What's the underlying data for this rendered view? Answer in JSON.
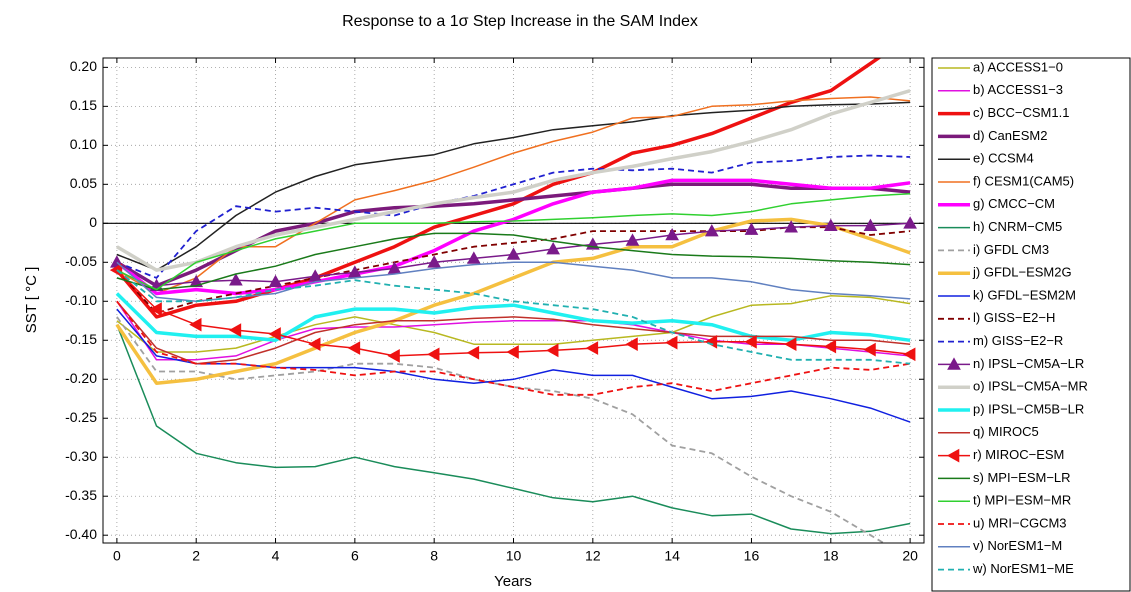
{
  "chart_data": {
    "type": "line",
    "title": "Response to a 1σ Step Increase in the SAM Index",
    "xlabel": "Years",
    "ylabel": "SST [ °C ]",
    "x": [
      0,
      1,
      2,
      3,
      4,
      5,
      6,
      7,
      8,
      9,
      10,
      11,
      12,
      13,
      14,
      15,
      16,
      17,
      18,
      19,
      20
    ],
    "xlim": [
      -0.35,
      20.35
    ],
    "ylim": [
      -0.41,
      0.212
    ],
    "xticks": [
      0,
      2,
      4,
      6,
      8,
      10,
      12,
      14,
      16,
      18,
      20
    ],
    "yticks": [
      {
        "value": 0.2,
        "label": "0.20"
      },
      {
        "value": 0.15,
        "label": "0.15"
      },
      {
        "value": 0.1,
        "label": "0.10"
      },
      {
        "value": 0.05,
        "label": "0.05"
      },
      0,
      {
        "value": -0.05,
        "label": "-0.05"
      },
      {
        "value": -0.1,
        "label": "-0.10"
      },
      {
        "value": -0.15,
        "label": "-0.15"
      },
      {
        "value": -0.2,
        "label": "-0.20"
      },
      {
        "value": -0.25,
        "label": "-0.25"
      },
      {
        "value": -0.3,
        "label": "-0.30"
      },
      {
        "value": -0.35,
        "label": "-0.35"
      },
      {
        "value": -0.4,
        "label": "-0.40"
      }
    ],
    "grid": true,
    "legend": "right",
    "series": [
      {
        "name": "a) ACCESS1−0",
        "color": "#b8b820",
        "width": 1.5,
        "dash": false,
        "values": [
          -0.125,
          -0.165,
          -0.165,
          -0.16,
          -0.145,
          -0.13,
          -0.12,
          -0.13,
          -0.14,
          -0.155,
          -0.155,
          -0.155,
          -0.15,
          -0.145,
          -0.14,
          -0.12,
          -0.105,
          -0.103,
          -0.093,
          -0.095,
          -0.103
        ]
      },
      {
        "name": "b) ACCESS1−3",
        "color": "#e010e0",
        "width": 1.5,
        "dash": false,
        "values": [
          -0.1,
          -0.175,
          -0.175,
          -0.17,
          -0.15,
          -0.135,
          -0.133,
          -0.133,
          -0.13,
          -0.127,
          -0.125,
          -0.125,
          -0.125,
          -0.13,
          -0.14,
          -0.15,
          -0.155,
          -0.155,
          -0.16,
          -0.165,
          -0.17
        ]
      },
      {
        "name": "c) BCC−CSM1.1",
        "color": "#ee1111",
        "width": 3.5,
        "dash": false,
        "values": [
          -0.06,
          -0.12,
          -0.105,
          -0.1,
          -0.085,
          -0.07,
          -0.05,
          -0.03,
          -0.005,
          0.01,
          0.025,
          0.05,
          0.065,
          0.09,
          0.1,
          0.115,
          0.135,
          0.155,
          0.17,
          0.205,
          0.24
        ]
      },
      {
        "name": "d) CanESM2",
        "color": "#7b1a7b",
        "width": 3.5,
        "dash": false,
        "values": [
          -0.05,
          -0.08,
          -0.06,
          -0.035,
          -0.01,
          0.0,
          0.015,
          0.02,
          0.022,
          0.025,
          0.03,
          0.035,
          0.04,
          0.045,
          0.05,
          0.05,
          0.05,
          0.045,
          0.045,
          0.045,
          0.04
        ]
      },
      {
        "name": "e) CCSM4",
        "color": "#222222",
        "width": 1.5,
        "dash": false,
        "values": [
          -0.04,
          -0.06,
          -0.03,
          0.01,
          0.04,
          0.06,
          0.075,
          0.082,
          0.088,
          0.102,
          0.11,
          0.12,
          0.125,
          0.13,
          0.138,
          0.142,
          0.145,
          0.15,
          0.152,
          0.153,
          0.155
        ]
      },
      {
        "name": "f) CESM1(CAM5)",
        "color": "#f07020",
        "width": 1.5,
        "dash": false,
        "values": [
          -0.06,
          -0.09,
          -0.07,
          -0.03,
          -0.03,
          0.0,
          0.03,
          0.042,
          0.055,
          0.072,
          0.09,
          0.105,
          0.117,
          0.135,
          0.137,
          0.15,
          0.152,
          0.157,
          0.16,
          0.162,
          0.157
        ]
      },
      {
        "name": "g) CMCC−CM",
        "color": "#ff00ff",
        "width": 3.5,
        "dash": false,
        "values": [
          -0.05,
          -0.09,
          -0.085,
          -0.09,
          -0.085,
          -0.075,
          -0.065,
          -0.055,
          -0.035,
          -0.01,
          0.005,
          0.025,
          0.04,
          0.045,
          0.055,
          0.055,
          0.055,
          0.05,
          0.045,
          0.045,
          0.052
        ]
      },
      {
        "name": "h) CNRM−CM5",
        "color": "#1a8c5a",
        "width": 1.5,
        "dash": false,
        "values": [
          -0.13,
          -0.26,
          -0.295,
          -0.307,
          -0.313,
          -0.312,
          -0.3,
          -0.312,
          -0.32,
          -0.328,
          -0.34,
          -0.352,
          -0.357,
          -0.35,
          -0.365,
          -0.375,
          -0.373,
          -0.392,
          -0.398,
          -0.395,
          -0.385
        ]
      },
      {
        "name": "i) GFDL CM3",
        "color": "#a0a0a0",
        "width": 1.8,
        "dash": true,
        "values": [
          -0.12,
          -0.19,
          -0.19,
          -0.2,
          -0.195,
          -0.19,
          -0.18,
          -0.18,
          -0.185,
          -0.2,
          -0.21,
          -0.215,
          -0.225,
          -0.245,
          -0.285,
          -0.295,
          -0.325,
          -0.35,
          -0.37,
          -0.4,
          -0.43
        ]
      },
      {
        "name": "j) GFDL−ESM2G",
        "color": "#f5c040",
        "width": 3.5,
        "dash": false,
        "values": [
          -0.13,
          -0.205,
          -0.2,
          -0.19,
          -0.18,
          -0.16,
          -0.14,
          -0.125,
          -0.105,
          -0.09,
          -0.07,
          -0.05,
          -0.045,
          -0.03,
          -0.03,
          -0.01,
          0.003,
          0.005,
          -0.003,
          -0.02,
          -0.038
        ]
      },
      {
        "name": "k) GFDL−ESM2M",
        "color": "#1020e0",
        "width": 1.5,
        "dash": false,
        "values": [
          -0.11,
          -0.17,
          -0.18,
          -0.18,
          -0.185,
          -0.185,
          -0.185,
          -0.19,
          -0.2,
          -0.205,
          -0.2,
          -0.188,
          -0.195,
          -0.195,
          -0.21,
          -0.225,
          -0.222,
          -0.215,
          -0.225,
          -0.237,
          -0.255
        ]
      },
      {
        "name": "l) GISS−E2−H",
        "color": "#800000",
        "width": 1.8,
        "dash": true,
        "values": [
          -0.06,
          -0.115,
          -0.1,
          -0.09,
          -0.08,
          -0.07,
          -0.06,
          -0.05,
          -0.04,
          -0.03,
          -0.025,
          -0.02,
          -0.01,
          -0.01,
          -0.01,
          -0.01,
          -0.01,
          -0.005,
          -0.005,
          -0.015,
          -0.01
        ]
      },
      {
        "name": "m) GISS−E2−R",
        "color": "#2020d0",
        "width": 1.8,
        "dash": true,
        "values": [
          -0.05,
          -0.07,
          -0.01,
          0.022,
          0.015,
          0.02,
          0.015,
          0.01,
          0.025,
          0.035,
          0.05,
          0.065,
          0.07,
          0.068,
          0.07,
          0.065,
          0.078,
          0.08,
          0.085,
          0.087,
          0.085
        ]
      },
      {
        "name": "n) IPSL−CM5A−LR",
        "color": "#7a1a8a",
        "width": 1.5,
        "dash": false,
        "marker": "triangle-up",
        "values": [
          -0.05,
          -0.08,
          -0.075,
          -0.073,
          -0.075,
          -0.068,
          -0.063,
          -0.058,
          -0.05,
          -0.045,
          -0.04,
          -0.033,
          -0.027,
          -0.022,
          -0.015,
          -0.01,
          -0.008,
          -0.005,
          -0.003,
          -0.003,
          0.0
        ]
      },
      {
        "name": "o) IPSL−CM5A−MR",
        "color": "#d0d0c8",
        "width": 3.5,
        "dash": false,
        "values": [
          -0.03,
          -0.06,
          -0.05,
          -0.03,
          -0.015,
          -0.005,
          0.005,
          0.015,
          0.025,
          0.033,
          0.04,
          0.055,
          0.065,
          0.073,
          0.083,
          0.092,
          0.105,
          0.12,
          0.14,
          0.155,
          0.17
        ]
      },
      {
        "name": "p) IPSL−CM5B−LR",
        "color": "#20f0f0",
        "width": 3.5,
        "dash": false,
        "values": [
          -0.09,
          -0.14,
          -0.145,
          -0.145,
          -0.15,
          -0.12,
          -0.11,
          -0.11,
          -0.115,
          -0.108,
          -0.105,
          -0.115,
          -0.125,
          -0.128,
          -0.125,
          -0.13,
          -0.145,
          -0.15,
          -0.14,
          -0.143,
          -0.15
        ]
      },
      {
        "name": "q) MIROC5",
        "color": "#c0302a",
        "width": 1.5,
        "dash": false,
        "values": [
          -0.1,
          -0.16,
          -0.18,
          -0.175,
          -0.16,
          -0.14,
          -0.13,
          -0.125,
          -0.125,
          -0.122,
          -0.12,
          -0.123,
          -0.13,
          -0.135,
          -0.14,
          -0.145,
          -0.145,
          -0.145,
          -0.15,
          -0.15,
          -0.155
        ]
      },
      {
        "name": "r) MIROC−ESM",
        "color": "#ee1111",
        "width": 1.5,
        "dash": false,
        "marker": "triangle-left",
        "values": [
          -0.06,
          -0.11,
          -0.13,
          -0.137,
          -0.142,
          -0.155,
          -0.16,
          -0.17,
          -0.168,
          -0.166,
          -0.165,
          -0.163,
          -0.16,
          -0.155,
          -0.153,
          -0.152,
          -0.152,
          -0.155,
          -0.158,
          -0.162,
          -0.168
        ]
      },
      {
        "name": "s) MPI−ESM−LR",
        "color": "#1a7a1a",
        "width": 1.5,
        "dash": false,
        "values": [
          -0.07,
          -0.085,
          -0.08,
          -0.065,
          -0.055,
          -0.04,
          -0.03,
          -0.02,
          -0.013,
          -0.013,
          -0.015,
          -0.023,
          -0.03,
          -0.035,
          -0.04,
          -0.042,
          -0.043,
          -0.045,
          -0.048,
          -0.05,
          -0.053
        ]
      },
      {
        "name": "t) MPI−ESM−MR",
        "color": "#30d030",
        "width": 1.5,
        "dash": false,
        "values": [
          -0.06,
          -0.085,
          -0.05,
          -0.035,
          -0.02,
          -0.01,
          0.0,
          0.0,
          0.0,
          0.002,
          0.003,
          0.005,
          0.007,
          0.01,
          0.012,
          0.01,
          0.015,
          0.025,
          0.03,
          0.035,
          0.038
        ]
      },
      {
        "name": "u) MRI−CGCM3",
        "color": "#ee1111",
        "width": 1.8,
        "dash": true,
        "values": [
          -0.1,
          -0.165,
          -0.18,
          -0.18,
          -0.185,
          -0.188,
          -0.195,
          -0.19,
          -0.19,
          -0.2,
          -0.21,
          -0.22,
          -0.22,
          -0.21,
          -0.205,
          -0.215,
          -0.205,
          -0.195,
          -0.185,
          -0.188,
          -0.18
        ]
      },
      {
        "name": "v) NorESM1−M",
        "color": "#6080c0",
        "width": 1.5,
        "dash": false,
        "values": [
          -0.05,
          -0.095,
          -0.1,
          -0.095,
          -0.09,
          -0.075,
          -0.07,
          -0.065,
          -0.058,
          -0.053,
          -0.05,
          -0.05,
          -0.055,
          -0.06,
          -0.07,
          -0.07,
          -0.075,
          -0.085,
          -0.09,
          -0.093,
          -0.097
        ]
      },
      {
        "name": "w) NorESM1−ME",
        "color": "#20b0b0",
        "width": 1.8,
        "dash": true,
        "values": [
          -0.06,
          -0.1,
          -0.1,
          -0.095,
          -0.085,
          -0.08,
          -0.073,
          -0.08,
          -0.085,
          -0.09,
          -0.1,
          -0.105,
          -0.11,
          -0.12,
          -0.14,
          -0.155,
          -0.165,
          -0.175,
          -0.175,
          -0.175,
          -0.18
        ]
      }
    ]
  }
}
